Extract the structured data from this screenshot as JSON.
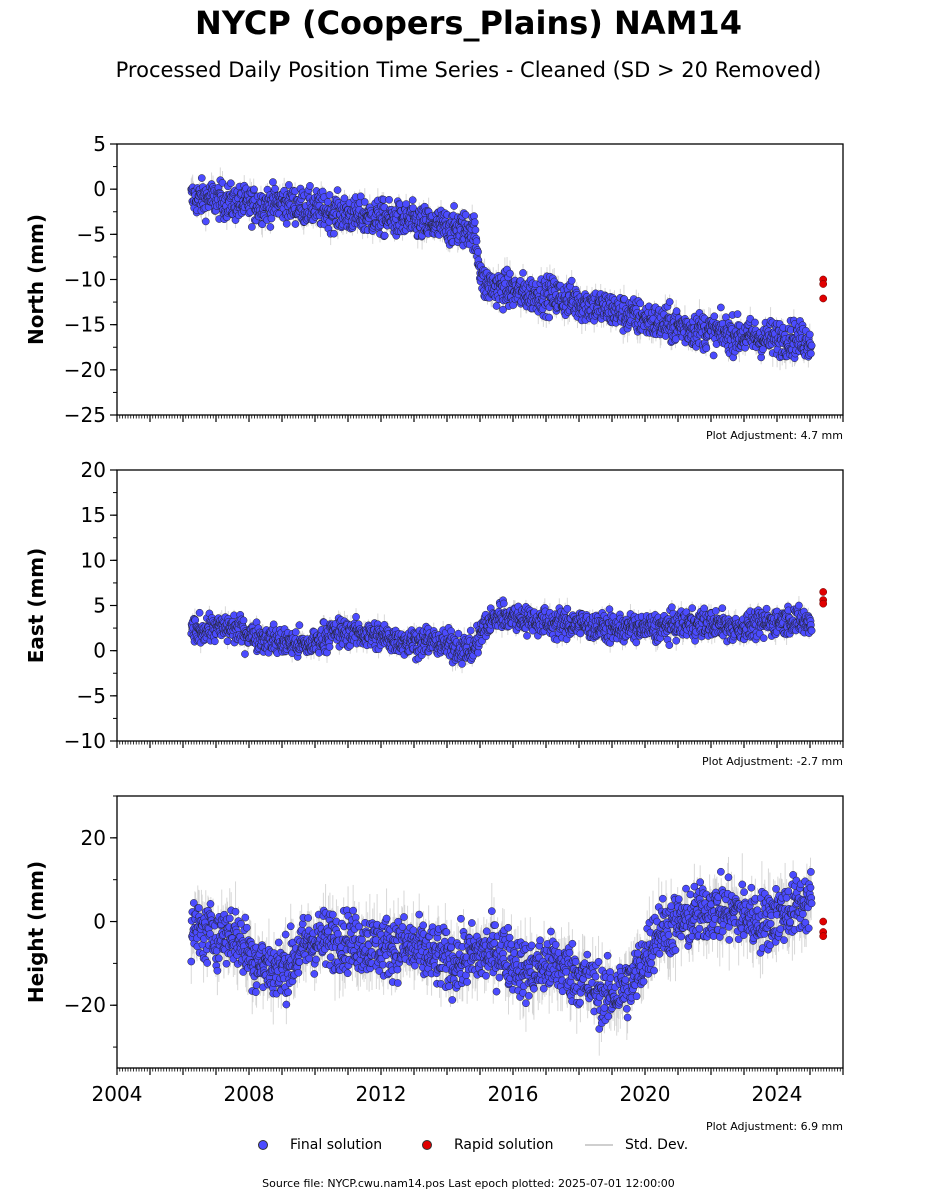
{
  "title": "NYCP (Coopers_Plains) NAM14",
  "subtitle": "Processed Daily Position Time Series - Cleaned (SD > 20 Removed)",
  "footer": "Source file: NYCP.cwu.nam14.pos  Last epoch plotted: 2025-07-01 12:00:00",
  "legend": {
    "final": "Final solution",
    "rapid": "Rapid solution",
    "std": "Std. Dev."
  },
  "colors": {
    "final": "#4b4bff",
    "rapid": "#e00000",
    "std": "#c8c8c8",
    "marker_edge": "#222222"
  },
  "chart_data": [
    {
      "type": "scatter",
      "ylabel": "North (mm)",
      "xlim": [
        2004,
        2026
      ],
      "ylim": [
        -25,
        5
      ],
      "yticks": [
        5,
        0,
        -5,
        -10,
        -15,
        -20,
        -25
      ],
      "adjustment": "Plot Adjustment: 4.7 mm",
      "series": [
        {
          "x": [
            2006.3,
            2006.8,
            2007.5,
            2008.3,
            2009.0,
            2009.8,
            2010.5,
            2011.3,
            2012.0,
            2012.8,
            2013.5,
            2014.2,
            2014.8,
            2015.1,
            2015.6,
            2016.4,
            2017.2,
            2018.0,
            2018.8,
            2019.6,
            2020.4,
            2021.2,
            2022.0,
            2022.8,
            2023.6,
            2024.4,
            2025.0
          ],
          "y": [
            -1.0,
            -1.0,
            -1.5,
            -1.8,
            -1.5,
            -2.0,
            -2.5,
            -3.0,
            -3.2,
            -3.5,
            -4.0,
            -4.3,
            -4.5,
            -10.5,
            -11.0,
            -11.5,
            -11.8,
            -12.5,
            -13.2,
            -14.0,
            -14.8,
            -15.3,
            -15.8,
            -16.2,
            -16.5,
            -16.5,
            -16.8
          ],
          "spread": 1.8
        },
        {
          "x": [
            2025.4,
            2025.4,
            2025.4
          ],
          "y": [
            -10.0,
            -10.5,
            -12.1
          ],
          "rapid": true
        }
      ]
    },
    {
      "type": "scatter",
      "ylabel": "East (mm)",
      "xlim": [
        2004,
        2026
      ],
      "ylim": [
        -10,
        20
      ],
      "yticks": [
        20,
        15,
        10,
        5,
        0,
        -5,
        -10
      ],
      "adjustment": "Plot Adjustment: -2.7 mm",
      "series": [
        {
          "x": [
            2006.3,
            2006.8,
            2007.5,
            2008.3,
            2009.0,
            2009.8,
            2010.5,
            2011.3,
            2012.0,
            2012.8,
            2013.5,
            2014.2,
            2014.8,
            2015.1,
            2015.6,
            2016.4,
            2017.2,
            2018.0,
            2018.8,
            2019.6,
            2020.4,
            2021.2,
            2022.0,
            2022.8,
            2023.6,
            2024.4,
            2025.0
          ],
          "y": [
            2.0,
            2.5,
            2.5,
            1.5,
            1.0,
            0.5,
            2.0,
            2.0,
            1.5,
            1.0,
            1.0,
            0.5,
            0.0,
            2.5,
            4.0,
            3.5,
            3.0,
            3.0,
            2.5,
            2.5,
            2.5,
            3.0,
            3.0,
            2.5,
            3.0,
            3.5,
            3.0
          ],
          "spread": 1.4
        },
        {
          "x": [
            2025.4,
            2025.4,
            2025.4
          ],
          "y": [
            6.5,
            5.6,
            5.2
          ],
          "rapid": true
        }
      ]
    },
    {
      "type": "scatter",
      "ylabel": "Height (mm)",
      "xlim": [
        2004,
        2026
      ],
      "ylim": [
        -35,
        30
      ],
      "yticks": [
        20,
        0,
        -20
      ],
      "xticks": [
        2004,
        2008,
        2012,
        2016,
        2020,
        2024
      ],
      "adjustment": "Plot Adjustment: 6.9 mm",
      "series": [
        {
          "x": [
            2006.3,
            2006.8,
            2007.5,
            2008.3,
            2009.0,
            2009.8,
            2010.5,
            2011.3,
            2012.0,
            2012.8,
            2013.5,
            2014.2,
            2014.8,
            2015.1,
            2015.6,
            2016.4,
            2017.2,
            2018.0,
            2018.8,
            2019.6,
            2020.4,
            2021.2,
            2022.0,
            2022.8,
            2023.6,
            2024.4,
            2025.0
          ],
          "y": [
            -2,
            -3,
            -3,
            -10,
            -12,
            -5,
            -4,
            -5,
            -6,
            -6,
            -8,
            -10,
            -8,
            -8,
            -7,
            -12,
            -10,
            -13,
            -18,
            -15,
            -2,
            0,
            3,
            2,
            0,
            3,
            5
          ],
          "spread": 6.5
        },
        {
          "x": [
            2025.4,
            2025.4,
            2025.4
          ],
          "y": [
            0.0,
            -2.5,
            -3.5
          ],
          "rapid": true
        }
      ]
    }
  ]
}
